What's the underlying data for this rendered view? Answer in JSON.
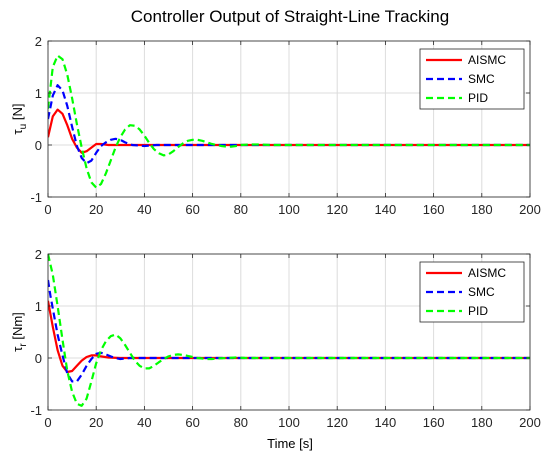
{
  "title": "Controller Output of Straight-Line Tracking",
  "xlabel": "Time [s]",
  "chart_data": [
    {
      "type": "line",
      "ylabel_main": "τ",
      "ylabel_sub": "u",
      "ylabel_unit": " [N]",
      "xlim": [
        0,
        200
      ],
      "ylim": [
        -1,
        2
      ],
      "xticks": [
        "0",
        "20",
        "40",
        "60",
        "80",
        "100",
        "120",
        "140",
        "160",
        "180",
        "200"
      ],
      "yticks": [
        "-1",
        "0",
        "1",
        "2"
      ],
      "grid": true,
      "legend_position": "top-right",
      "series": [
        {
          "name": "AISMC",
          "color": "#ff0000",
          "dash": "solid",
          "x": [
            0,
            2,
            4,
            6,
            8,
            10,
            12,
            14,
            16,
            18,
            20,
            22,
            25,
            30,
            200
          ],
          "y": [
            0.15,
            0.55,
            0.68,
            0.6,
            0.38,
            0.12,
            -0.05,
            -0.15,
            -0.12,
            -0.05,
            0.02,
            0.02,
            0.0,
            0.0,
            0.0
          ]
        },
        {
          "name": "SMC",
          "color": "#0000ff",
          "dash": "dashed",
          "x": [
            0,
            2,
            4,
            6,
            8,
            10,
            12,
            14,
            16,
            18,
            20,
            22,
            24,
            26,
            28,
            30,
            32,
            35,
            40,
            45,
            200
          ],
          "y": [
            0.5,
            0.95,
            1.15,
            1.05,
            0.75,
            0.35,
            -0.02,
            -0.25,
            -0.35,
            -0.3,
            -0.15,
            -0.02,
            0.05,
            0.1,
            0.12,
            0.1,
            0.05,
            0.0,
            -0.02,
            0.0,
            0.0
          ]
        },
        {
          "name": "PID",
          "color": "#00ff00",
          "dash": "dashed",
          "x": [
            0,
            2,
            4,
            6,
            8,
            10,
            12,
            14,
            16,
            18,
            20,
            22,
            24,
            26,
            28,
            30,
            32,
            34,
            36,
            38,
            40,
            42,
            44,
            46,
            48,
            50,
            52,
            54,
            56,
            58,
            60,
            62,
            64,
            66,
            68,
            70,
            72,
            74,
            76,
            78,
            80,
            84,
            88,
            92,
            96,
            100,
            200
          ],
          "y": [
            0.7,
            1.5,
            1.72,
            1.65,
            1.35,
            0.9,
            0.4,
            -0.05,
            -0.45,
            -0.72,
            -0.82,
            -0.75,
            -0.55,
            -0.3,
            -0.05,
            0.15,
            0.3,
            0.38,
            0.37,
            0.3,
            0.18,
            0.04,
            -0.08,
            -0.16,
            -0.2,
            -0.18,
            -0.12,
            -0.04,
            0.03,
            0.08,
            0.1,
            0.1,
            0.08,
            0.05,
            0.02,
            0.0,
            -0.02,
            -0.03,
            -0.03,
            -0.02,
            0.0,
            0.01,
            0.01,
            0.0,
            0.0,
            0.0,
            0.0
          ]
        }
      ]
    },
    {
      "type": "line",
      "ylabel_main": "τ",
      "ylabel_sub": "r",
      "ylabel_unit": " [Nm]",
      "xlim": [
        0,
        200
      ],
      "ylim": [
        -1,
        2
      ],
      "xticks": [
        "0",
        "20",
        "40",
        "60",
        "80",
        "100",
        "120",
        "140",
        "160",
        "180",
        "200"
      ],
      "yticks": [
        "-1",
        "0",
        "1",
        "2"
      ],
      "grid": true,
      "legend_position": "top-right",
      "series": [
        {
          "name": "AISMC",
          "color": "#ff0000",
          "dash": "solid",
          "x": [
            0,
            1,
            2,
            4,
            6,
            8,
            10,
            12,
            14,
            16,
            18,
            20,
            22,
            25,
            30,
            200
          ],
          "y": [
            1.1,
            0.85,
            0.6,
            0.15,
            -0.15,
            -0.27,
            -0.25,
            -0.15,
            -0.05,
            0.02,
            0.05,
            0.05,
            0.03,
            0.01,
            0.0,
            0.0
          ]
        },
        {
          "name": "SMC",
          "color": "#0000ff",
          "dash": "dashed",
          "x": [
            0,
            1,
            2,
            4,
            6,
            8,
            10,
            12,
            14,
            16,
            18,
            20,
            22,
            24,
            26,
            28,
            30,
            34,
            40,
            200
          ],
          "y": [
            1.5,
            1.2,
            0.95,
            0.45,
            0.05,
            -0.3,
            -0.45,
            -0.45,
            -0.32,
            -0.15,
            -0.02,
            0.08,
            0.1,
            0.07,
            0.03,
            0.0,
            -0.02,
            0.0,
            0.0,
            0.0
          ]
        },
        {
          "name": "PID",
          "color": "#00ff00",
          "dash": "dashed",
          "x": [
            0,
            2,
            4,
            6,
            8,
            10,
            12,
            14,
            16,
            18,
            20,
            22,
            24,
            26,
            28,
            30,
            32,
            34,
            36,
            38,
            40,
            42,
            44,
            46,
            48,
            50,
            52,
            54,
            56,
            58,
            60,
            62,
            64,
            66,
            68,
            70,
            74,
            78,
            82,
            86,
            90,
            200
          ],
          "y": [
            2.0,
            1.6,
            1.0,
            0.35,
            -0.25,
            -0.65,
            -0.88,
            -0.92,
            -0.78,
            -0.45,
            -0.1,
            0.15,
            0.32,
            0.42,
            0.45,
            0.38,
            0.25,
            0.1,
            -0.05,
            -0.15,
            -0.2,
            -0.2,
            -0.15,
            -0.08,
            -0.02,
            0.03,
            0.06,
            0.07,
            0.06,
            0.04,
            0.02,
            0.0,
            -0.01,
            -0.02,
            -0.02,
            -0.01,
            0.0,
            0.01,
            0.0,
            0.0,
            0.0,
            0.0
          ]
        }
      ]
    }
  ]
}
